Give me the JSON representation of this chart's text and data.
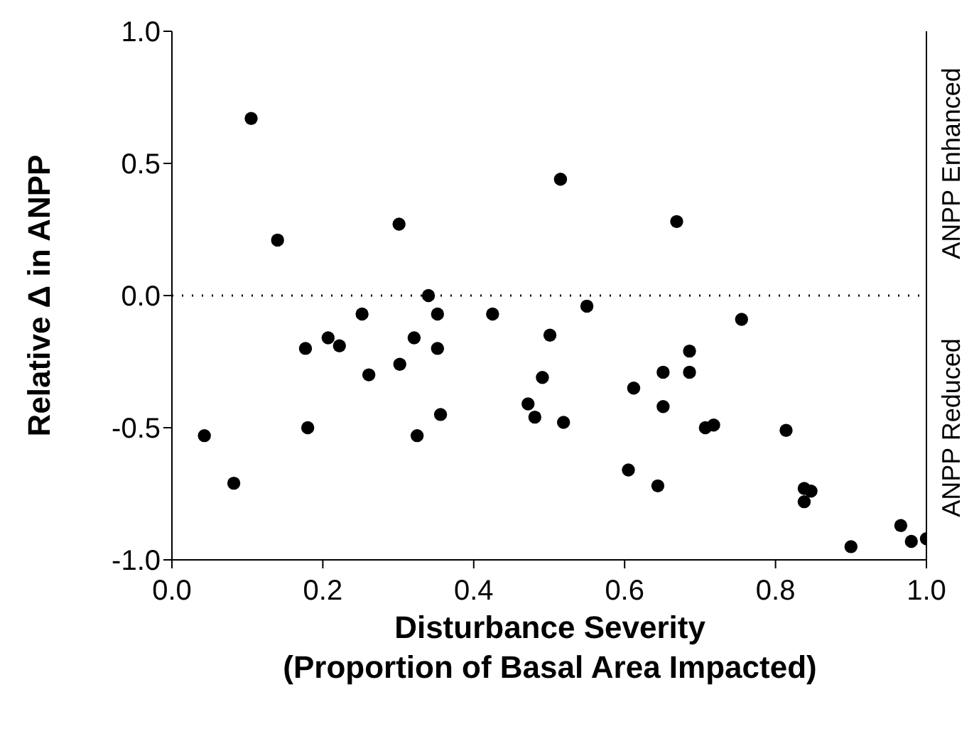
{
  "chart_data": {
    "type": "scatter",
    "xlabel": "Disturbance Severity\n(Proportion of Basal Area Impacted)",
    "ylabel": "Relative Δ in ANPP",
    "annotations": [
      "ANPP Reduced",
      "ANPP Enhanced"
    ],
    "x": [
      0.105,
      0.14,
      0.301,
      0.043,
      0.082,
      0.18,
      0.177,
      0.207,
      0.222,
      0.252,
      0.261,
      0.302,
      0.321,
      0.325,
      0.34,
      0.352,
      0.352,
      0.356,
      0.425,
      0.472,
      0.481,
      0.501,
      0.491,
      0.515,
      0.519,
      0.55,
      0.605,
      0.612,
      0.644,
      0.651,
      0.651,
      0.669,
      0.686,
      0.686,
      0.707,
      0.718,
      0.755,
      0.814,
      0.838,
      0.847,
      0.838,
      0.9,
      0.966,
      0.98,
      1.0
    ],
    "series": [
      {
        "color": "#000000",
        "values": [
          0.67,
          0.21,
          0.27,
          -0.53,
          -0.71,
          -0.5,
          -0.2,
          -0.16,
          -0.19,
          -0.07,
          -0.3,
          -0.26,
          -0.16,
          -0.53,
          0.0,
          -0.07,
          -0.2,
          -0.45,
          -0.07,
          -0.41,
          -0.46,
          -0.15,
          -0.31,
          0.44,
          -0.48,
          -0.04,
          -0.66,
          -0.35,
          -0.72,
          -0.29,
          -0.42,
          0.28,
          -0.21,
          -0.29,
          -0.5,
          -0.49,
          -0.09,
          -0.51,
          -0.73,
          -0.74,
          -0.78,
          -0.95,
          -0.87,
          -0.93,
          -0.92
        ]
      }
    ],
    "xlim": [
      0,
      1
    ],
    "xticks": [
      {
        "value": 0,
        "label": "0.0"
      },
      {
        "value": 0.2,
        "label": "0.2"
      },
      {
        "value": 0.4,
        "label": "0.4"
      },
      {
        "value": 0.6,
        "label": "0.6"
      },
      {
        "value": 0.8,
        "label": "0.8"
      },
      {
        "value": 1,
        "label": "1.0"
      }
    ],
    "ylim": [
      -1,
      1
    ],
    "yticks": [
      {
        "value": -1,
        "label": "-1.0"
      },
      {
        "value": -0.5,
        "label": "-0.5"
      },
      {
        "value": 0,
        "label": "0.0"
      },
      {
        "value": 0.5,
        "label": "0.5"
      },
      {
        "value": 1,
        "label": "1.0"
      }
    ],
    "ref_lines": [
      {
        "axis": "y",
        "value": 0,
        "color": "#000000",
        "line_style": "dotted"
      }
    ],
    "grid": false,
    "legend": false,
    "marker": "circle"
  }
}
